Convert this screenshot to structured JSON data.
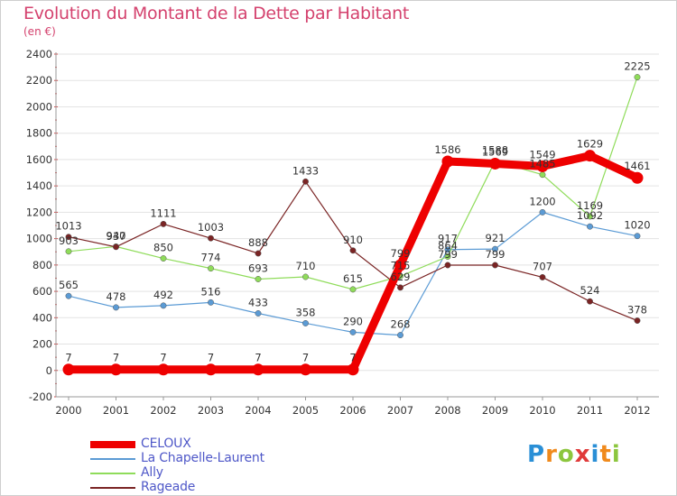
{
  "header": {
    "title": "Evolution du Montant de la Dette par Habitant",
    "subtitle": "(en €)"
  },
  "logo": {
    "letters": [
      "P",
      "r",
      "o",
      "x",
      "i",
      "t",
      "i"
    ],
    "colors": [
      "#2a8fd6",
      "#f08a1c",
      "#8cc63e",
      "#e03a3a",
      "#2a8fd6",
      "#f08a1c",
      "#8cc63e"
    ]
  },
  "chart_data": {
    "type": "line",
    "title": "Evolution du Montant de la Dette par Habitant",
    "subtitle": "(en €)",
    "xlabel": "",
    "ylabel": "",
    "ylim": [
      -200,
      2400
    ],
    "yticks": [
      -200,
      0,
      200,
      400,
      600,
      800,
      1000,
      1200,
      1400,
      1600,
      1800,
      2000,
      2200,
      2400
    ],
    "grid": "horizontal",
    "legend_position": "bottom-left",
    "x": [
      "2000",
      "2001",
      "2002",
      "2003",
      "2004",
      "2005",
      "2006",
      "2007",
      "2008",
      "2009",
      "2010",
      "2011",
      "2012"
    ],
    "series": [
      {
        "name": "CELOUX",
        "color": "#ee0000",
        "emphasis": true,
        "values": [
          7,
          7,
          7,
          7,
          7,
          7,
          7,
          799,
          1586,
          1569,
          1549,
          1629,
          1461
        ]
      },
      {
        "name": "La Chapelle-Laurent",
        "color": "#5b9bd5",
        "values": [
          565,
          478,
          492,
          516,
          433,
          358,
          290,
          268,
          917,
          921,
          1200,
          1092,
          1020
        ]
      },
      {
        "name": "Ally",
        "color": "#8fdc5a",
        "values": [
          903,
          940,
          850,
          774,
          693,
          710,
          615,
          715,
          864,
          1588,
          1485,
          1169,
          2225
        ]
      },
      {
        "name": "Rageade",
        "color": "#7a2424",
        "values": [
          1013,
          937,
          1111,
          1003,
          888,
          1433,
          910,
          629,
          799,
          799,
          707,
          524,
          378
        ]
      }
    ]
  }
}
